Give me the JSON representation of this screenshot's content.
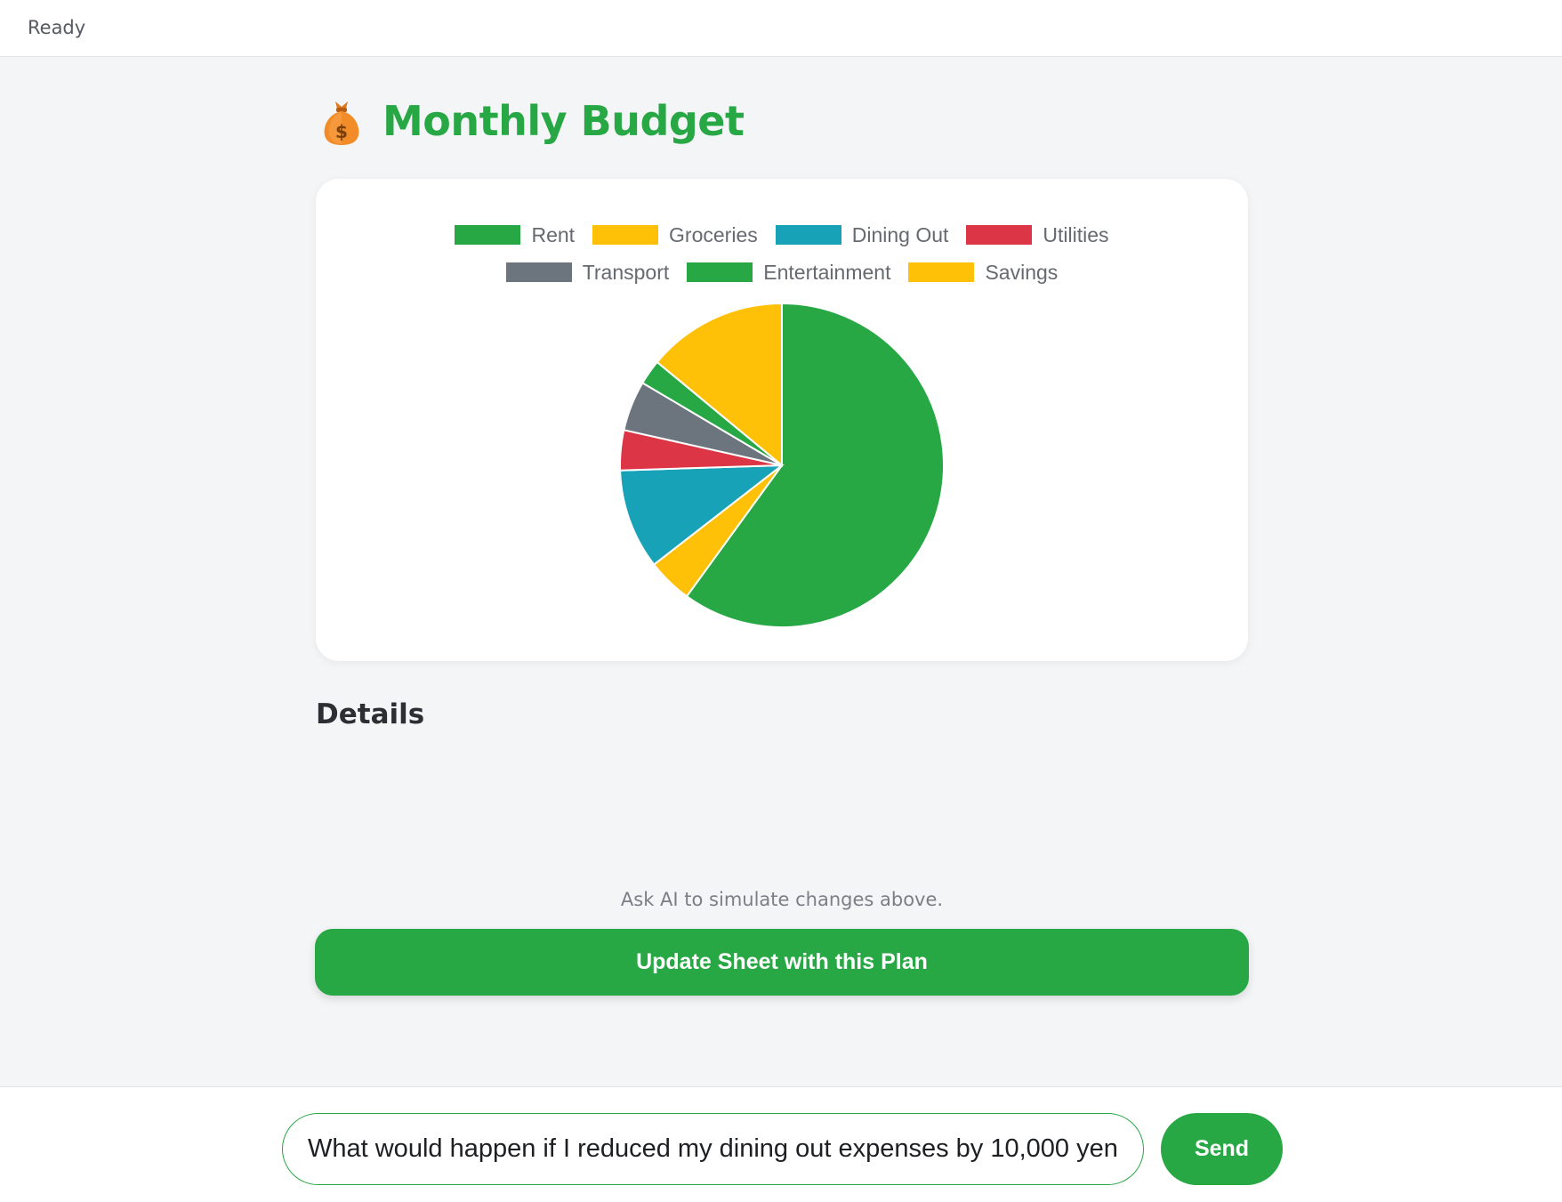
{
  "status": "Ready",
  "page": {
    "title": "Monthly Budget",
    "title_icon": "money-bag-icon",
    "details_heading": "Details",
    "hint": "Ask AI to simulate changes above.",
    "update_button": "Update Sheet with this Plan"
  },
  "chat": {
    "input_value": "What would happen if I reduced my dining out expenses by 10,000 yen",
    "send_label": "Send"
  },
  "colors": {
    "accent": "#28a745",
    "background": "#f4f5f7"
  },
  "chart_data": {
    "type": "pie",
    "title": "",
    "legend_position": "top",
    "series": [
      {
        "name": "Rent",
        "value": 60,
        "color": "#28a745"
      },
      {
        "name": "Groceries",
        "value": 4.5,
        "color": "#ffc107"
      },
      {
        "name": "Dining Out",
        "value": 10,
        "color": "#17a2b8"
      },
      {
        "name": "Utilities",
        "value": 4,
        "color": "#dc3545"
      },
      {
        "name": "Transport",
        "value": 5,
        "color": "#6c757d"
      },
      {
        "name": "Entertainment",
        "value": 2.5,
        "color": "#28a745"
      },
      {
        "name": "Savings",
        "value": 14,
        "color": "#ffc107"
      }
    ]
  }
}
